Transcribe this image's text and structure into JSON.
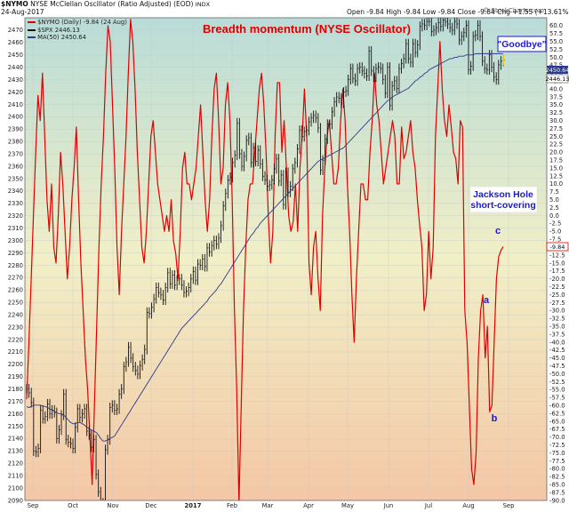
{
  "header": {
    "symbol": "$NYMO",
    "name": "NYSE McClellan Oscillator (Ratio Adjusted) (EOD)",
    "exchange": "INDX",
    "date": "24-Aug-2017",
    "ohlc": "Open -9.84  High -9.84  Low -9.84  Close -9.84  Chg +1.55 (+13.61%)",
    "legend_nymo": "$NYMO (Daily) -9.84 (24 Aug)",
    "legend_spx": "$SPX 2446.13",
    "legend_ma": "MA(50) 2450.64",
    "watermark": "© StockCharts.com"
  },
  "chart_data": {
    "type": "line",
    "title": "Breadth momentum (NYSE Oscillator)",
    "x_tick_labels": [
      "Sep",
      "Oct",
      "Nov",
      "Dec",
      "2017",
      "Feb",
      "Mar",
      "Apr",
      "May",
      "Jun",
      "Jul",
      "Aug",
      "Sep"
    ],
    "left_axis": {
      "min": 2090,
      "max": 2480,
      "step": 10
    },
    "right_axis": {
      "min": -90,
      "max": 62.5,
      "step": 2.5
    },
    "series": [
      {
        "name": "$NYMO",
        "axis": "right",
        "color": "#e00000",
        "values": [
          -58,
          -40,
          -20,
          0,
          20,
          38,
          30,
          45,
          25,
          5,
          -5,
          10,
          -10,
          -15,
          0,
          20,
          10,
          -5,
          -20,
          -10,
          5,
          15,
          28,
          5,
          -15,
          -30,
          -45,
          -55,
          -70,
          -85,
          -60,
          -35,
          -10,
          10,
          25,
          45,
          60,
          55,
          35,
          15,
          -10,
          -25,
          -5,
          10,
          25,
          45,
          62,
          55,
          40,
          20,
          5,
          -10,
          -15,
          -5,
          10,
          25,
          30,
          20,
          10,
          5,
          0,
          -5,
          0,
          -5,
          5,
          -8,
          -12,
          -20,
          -5,
          15,
          20,
          10,
          10,
          5,
          10,
          15,
          25,
          35,
          20,
          5,
          -5,
          5,
          25,
          40,
          45,
          30,
          10,
          15,
          35,
          42,
          30,
          5,
          -30,
          -55,
          -91,
          -60,
          -30,
          -10,
          5,
          10,
          10,
          20,
          30,
          40,
          45,
          35,
          20,
          0,
          -15,
          -5,
          25,
          42,
          42,
          20,
          30,
          15,
          0,
          -5,
          -2,
          10,
          -5,
          15,
          25,
          40,
          25,
          -15,
          -25,
          -10,
          -5,
          -20,
          -30,
          0,
          15,
          25,
          30,
          20,
          10,
          10,
          15,
          30,
          40,
          30,
          10,
          -5,
          -25,
          -40,
          -20,
          -5,
          10,
          10,
          5,
          5,
          20,
          30,
          45,
          35,
          30,
          20,
          10,
          15,
          20,
          25,
          30,
          25,
          10,
          10,
          28,
          18,
          20,
          25,
          30,
          20,
          15,
          5,
          -3,
          -10,
          -30,
          -25,
          -5,
          -20,
          -10,
          25,
          40,
          55,
          40,
          30,
          25,
          35,
          28,
          20,
          18,
          10,
          30,
          28,
          -30,
          -40,
          -60,
          -80,
          -85,
          -75,
          -45,
          -30,
          -25,
          -45,
          -35,
          -62,
          -60,
          -40,
          -20,
          -13,
          -11,
          -9.84
        ]
      },
      {
        "name": "$SPX",
        "axis": "left",
        "color": "#111111",
        "values": [
          2180,
          2177,
          2169,
          2130,
          2129,
          2132,
          2163,
          2156,
          2158,
          2168,
          2160,
          2163,
          2161,
          2140,
          2147,
          2159,
          2176,
          2139,
          2137,
          2136,
          2132,
          2149,
          2164,
          2157,
          2160,
          2164,
          2146,
          2143,
          2133,
          2139,
          2111,
          2097,
          2088,
          2085,
          2131,
          2139,
          2165,
          2167,
          2163,
          2164,
          2176,
          2180,
          2198,
          2202,
          2214,
          2205,
          2198,
          2195,
          2192,
          2199,
          2204,
          2212,
          2242,
          2241,
          2246,
          2253,
          2262,
          2258,
          2256,
          2252,
          2262,
          2274,
          2265,
          2272,
          2264,
          2268,
          2269,
          2264,
          2258,
          2259,
          2262,
          2269,
          2275,
          2268,
          2281,
          2280,
          2285,
          2279,
          2294,
          2291,
          2296,
          2300,
          2297,
          2302,
          2312,
          2328,
          2338,
          2349,
          2351,
          2363,
          2369,
          2395,
          2370,
          2360,
          2368,
          2381,
          2383,
          2363,
          2375,
          2364,
          2373,
          2362,
          2352,
          2349,
          2344,
          2345,
          2349,
          2358,
          2366,
          2348,
          2353,
          2329,
          2355,
          2339,
          2344,
          2358,
          2363,
          2374,
          2389,
          2384,
          2388,
          2389,
          2396,
          2399,
          2401,
          2399,
          2391,
          2357,
          2365,
          2382,
          2394,
          2394,
          2404,
          2412,
          2416,
          2415,
          2411,
          2420,
          2421,
          2430,
          2439,
          2431,
          2429,
          2439,
          2440,
          2437,
          2435,
          2433,
          2453,
          2437,
          2432,
          2439,
          2440,
          2439,
          2430,
          2419,
          2440,
          2409,
          2425,
          2429,
          2423,
          2439,
          2443,
          2447,
          2459,
          2447,
          2444,
          2459,
          2452,
          2458,
          2473,
          2475,
          2474,
          2477,
          2477,
          2469,
          2470,
          2472,
          2476,
          2473,
          2478,
          2477,
          2475,
          2472,
          2470,
          2477,
          2475,
          2462,
          2465,
          2468,
          2474,
          2438,
          2441,
          2465,
          2466,
          2474,
          2465,
          2445,
          2439,
          2438,
          2450,
          2440,
          2432,
          2430,
          2442,
          2445,
          2446.13
        ]
      },
      {
        "name": "MA(50)",
        "axis": "left",
        "color": "#2b3a8c",
        "values": [
          2166,
          2165,
          2166,
          2167,
          2167,
          2167,
          2167,
          2166,
          2166,
          2165,
          2164,
          2163,
          2162,
          2161,
          2160,
          2160,
          2159,
          2157,
          2155,
          2153,
          2152,
          2152,
          2153,
          2153,
          2152,
          2151,
          2149,
          2148,
          2147,
          2146,
          2145,
          2143,
          2140,
          2138,
          2138,
          2139,
          2140,
          2141,
          2142,
          2145,
          2148,
          2151,
          2154,
          2157,
          2160,
          2163,
          2166,
          2169,
          2172,
          2175,
          2178,
          2181,
          2184,
          2187,
          2190,
          2193,
          2196,
          2199,
          2202,
          2205,
          2208,
          2211,
          2214,
          2217,
          2220,
          2223,
          2226,
          2229,
          2231,
          2233,
          2235,
          2237,
          2239,
          2241,
          2243,
          2245,
          2247,
          2249,
          2251,
          2254,
          2256,
          2258,
          2260,
          2263,
          2265,
          2268,
          2271,
          2274,
          2277,
          2280,
          2283,
          2286,
          2289,
          2292,
          2295,
          2298,
          2301,
          2304,
          2306,
          2309,
          2311,
          2314,
          2316,
          2318,
          2320,
          2322,
          2324,
          2326,
          2328,
          2330,
          2332,
          2334,
          2336,
          2338,
          2340,
          2342,
          2344,
          2346,
          2348,
          2350,
          2352,
          2354,
          2356,
          2358,
          2360,
          2362,
          2364,
          2365,
          2366,
          2367,
          2368,
          2369,
          2370,
          2371,
          2372,
          2373,
          2374,
          2375,
          2377,
          2379,
          2381,
          2383,
          2385,
          2387,
          2389,
          2391,
          2393,
          2395,
          2397,
          2399,
          2401,
          2403,
          2405,
          2407,
          2409,
          2411,
          2413,
          2414,
          2416,
          2417,
          2418,
          2419,
          2420,
          2421,
          2422,
          2423,
          2425,
          2427,
          2429,
          2430,
          2432,
          2433,
          2435,
          2436,
          2438,
          2439,
          2440,
          2441,
          2442,
          2443,
          2444,
          2445,
          2446,
          2447,
          2447,
          2448,
          2448,
          2449,
          2449,
          2449,
          2450,
          2450,
          2450,
          2450,
          2451,
          2451,
          2451,
          2451,
          2451,
          2451,
          2451,
          2451,
          2451,
          2451,
          2451,
          2451,
          2450.64
        ]
      }
    ],
    "value_labels": {
      "spx_top": "2450.64",
      "spx_bottom": "2446.13",
      "nymo": "-9.84"
    },
    "annotations": [
      {
        "text": "\"Goodbye\""
      },
      {
        "text": "Jackson Hole"
      },
      {
        "text": "short-covering"
      },
      {
        "text": "a"
      },
      {
        "text": "b"
      },
      {
        "text": "c"
      }
    ],
    "grid": true,
    "legend_placement": "top-left"
  }
}
